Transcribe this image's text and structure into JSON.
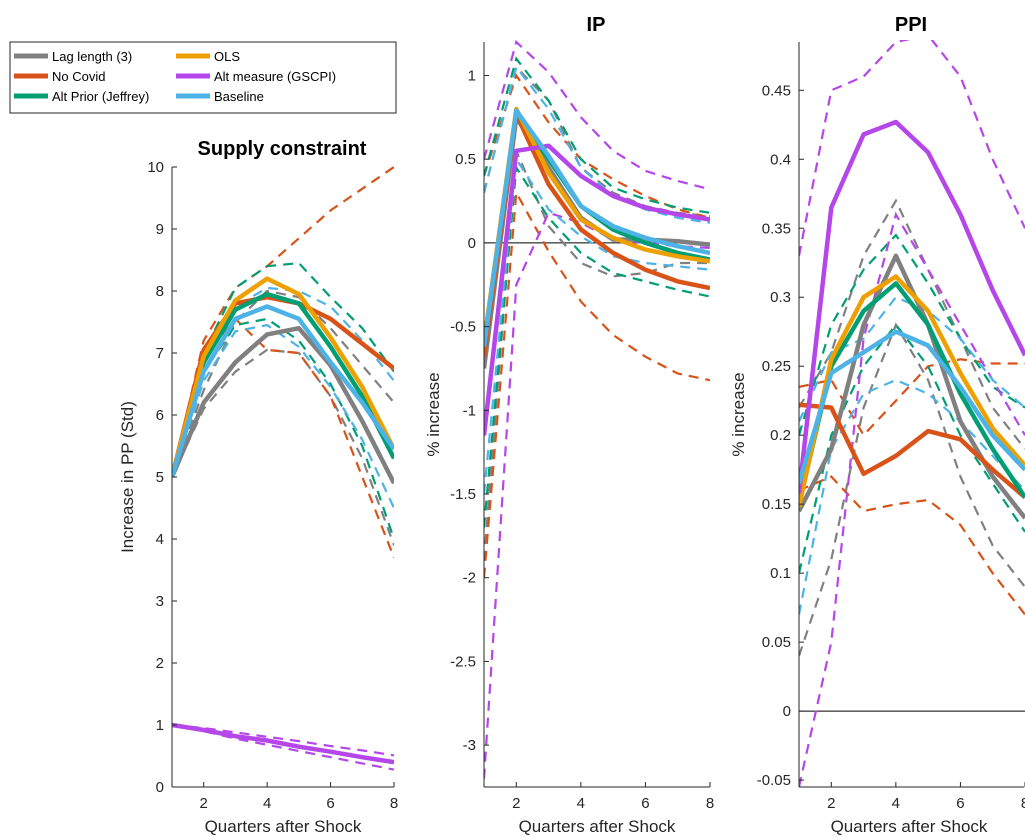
{
  "colors": {
    "gray": "#808080",
    "orange": "#D95319",
    "green": "#009E73",
    "gold": "#EDA000",
    "purple": "#B446EA",
    "blue": "#4DB3E6"
  },
  "legend": {
    "location": "top-left",
    "entries": [
      {
        "label": "Lag length (3)",
        "color": "#808080"
      },
      {
        "label": "No Covid",
        "color": "#D95319"
      },
      {
        "label": "Alt Prior (Jeffrey)",
        "color": "#009E73"
      },
      {
        "label": "OLS",
        "color": "#EDA000"
      },
      {
        "label": "Alt measure (GSCPI)",
        "color": "#B446EA"
      },
      {
        "label": "Baseline",
        "color": "#4DB3E6"
      }
    ]
  },
  "chart_data": [
    {
      "type": "line",
      "title": "Supply constraint",
      "xlabel": "Quarters after Shock",
      "ylabel": "Increase in PP (Std)",
      "xlim": [
        1,
        8
      ],
      "ylim": [
        0,
        10
      ],
      "xticks": [
        "2",
        "4",
        "6",
        "8"
      ],
      "yticks": [
        "0",
        "1",
        "2",
        "3",
        "4",
        "5",
        "6",
        "7",
        "8",
        "9",
        "10"
      ],
      "x": [
        1,
        2,
        3,
        4,
        5,
        6,
        7,
        8
      ],
      "grid": false,
      "series": [
        {
          "name": "Lag length (3)",
          "color": "#808080",
          "values": [
            5.0,
            6.2,
            6.85,
            7.3,
            7.4,
            6.8,
            5.9,
            4.9
          ],
          "lower": [
            5.0,
            6.1,
            6.7,
            7.05,
            7.0,
            6.3,
            5.3,
            3.9
          ],
          "upper": [
            5.0,
            6.4,
            7.5,
            8.0,
            7.9,
            7.4,
            6.8,
            6.2
          ]
        },
        {
          "name": "No Covid",
          "color": "#D95319",
          "values": [
            5.0,
            7.05,
            7.8,
            7.9,
            7.8,
            7.55,
            7.15,
            6.75
          ],
          "lower": [
            5.0,
            6.9,
            7.55,
            7.05,
            7.0,
            6.3,
            5.0,
            3.7
          ],
          "upper": [
            5.0,
            7.2,
            8.05,
            8.4,
            8.85,
            9.3,
            9.65,
            10.0
          ]
        },
        {
          "name": "Alt Prior (Jeffrey)",
          "color": "#009E73",
          "values": [
            5.0,
            6.85,
            7.7,
            7.95,
            7.8,
            7.1,
            6.3,
            5.3
          ],
          "lower": [
            5.0,
            6.7,
            7.45,
            7.55,
            7.2,
            6.5,
            5.5,
            4.0
          ],
          "upper": [
            5.0,
            7.0,
            8.05,
            8.4,
            8.45,
            7.9,
            7.4,
            6.7
          ]
        },
        {
          "name": "OLS",
          "color": "#EDA000",
          "values": [
            5.0,
            6.95,
            7.85,
            8.2,
            7.95,
            7.25,
            6.45,
            5.45
          ]
        },
        {
          "name": "Alt measure (GSCPI)",
          "color": "#B446EA",
          "values": [
            1.0,
            0.92,
            0.82,
            0.75,
            0.65,
            0.57,
            0.48,
            0.4
          ],
          "lower": [
            1.0,
            0.9,
            0.78,
            0.68,
            0.58,
            0.48,
            0.38,
            0.28
          ],
          "upper": [
            1.0,
            0.95,
            0.88,
            0.81,
            0.74,
            0.66,
            0.59,
            0.51
          ]
        },
        {
          "name": "Baseline",
          "color": "#4DB3E6",
          "values": [
            5.0,
            6.7,
            7.55,
            7.75,
            7.55,
            6.85,
            6.2,
            5.45
          ],
          "lower": [
            5.0,
            6.55,
            7.35,
            7.45,
            7.1,
            6.45,
            5.6,
            4.5
          ],
          "upper": [
            5.0,
            6.85,
            7.75,
            8.05,
            8.0,
            7.75,
            7.2,
            6.55
          ]
        }
      ]
    },
    {
      "type": "line",
      "title": "IP",
      "xlabel": "Quarters after Shock",
      "ylabel": "% increase",
      "xlim": [
        1,
        8
      ],
      "ylim": [
        -3.25,
        1.2
      ],
      "xticks": [
        "2",
        "4",
        "6",
        "8"
      ],
      "yticks": [
        "-3",
        "-2.5",
        "-2",
        "-1.5",
        "-1",
        "-0.5",
        "0",
        "0.5",
        "1"
      ],
      "zero_line": true,
      "x": [
        1,
        2,
        3,
        4,
        5,
        6,
        7,
        8
      ],
      "grid": false,
      "series": [
        {
          "name": "Lag length (3)",
          "color": "#808080",
          "values": [
            -0.75,
            0.75,
            0.45,
            0.15,
            0.02,
            0.02,
            0.01,
            -0.01
          ],
          "lower": [
            -1.9,
            0.55,
            0.1,
            -0.12,
            -0.2,
            -0.18,
            -0.12,
            -0.12
          ],
          "upper": [
            0.3,
            1.05,
            0.85,
            0.45,
            0.3,
            0.22,
            0.18,
            0.16
          ]
        },
        {
          "name": "No Covid",
          "color": "#D95319",
          "values": [
            -0.68,
            0.77,
            0.35,
            0.08,
            -0.06,
            -0.16,
            -0.23,
            -0.27
          ],
          "lower": [
            -2.0,
            0.3,
            -0.05,
            -0.35,
            -0.55,
            -0.68,
            -0.78,
            -0.82
          ],
          "upper": [
            0.4,
            1.0,
            0.72,
            0.5,
            0.38,
            0.28,
            0.2,
            0.15
          ]
        },
        {
          "name": "Alt Prior (Jeffrey)",
          "color": "#009E73",
          "values": [
            -0.6,
            0.78,
            0.5,
            0.22,
            0.08,
            0.0,
            -0.06,
            -0.1
          ],
          "lower": [
            -1.7,
            0.45,
            0.15,
            -0.06,
            -0.18,
            -0.23,
            -0.28,
            -0.32
          ],
          "upper": [
            0.4,
            1.1,
            0.85,
            0.5,
            0.33,
            0.26,
            0.21,
            0.18
          ]
        },
        {
          "name": "OLS",
          "color": "#EDA000",
          "values": [
            -0.6,
            0.8,
            0.42,
            0.14,
            0.03,
            -0.04,
            -0.08,
            -0.11
          ]
        },
        {
          "name": "Alt measure (GSCPI)",
          "color": "#B446EA",
          "values": [
            -1.15,
            0.55,
            0.58,
            0.4,
            0.28,
            0.21,
            0.17,
            0.14
          ],
          "lower": [
            -3.2,
            -0.25,
            0.18,
            0.12,
            0.02,
            0.0,
            -0.02,
            -0.03
          ],
          "upper": [
            0.5,
            1.2,
            1.02,
            0.75,
            0.55,
            0.43,
            0.37,
            0.32
          ]
        },
        {
          "name": "Baseline",
          "color": "#4DB3E6",
          "values": [
            -0.62,
            0.79,
            0.52,
            0.22,
            0.1,
            0.03,
            -0.02,
            -0.06
          ],
          "lower": [
            -1.5,
            0.5,
            0.2,
            0.04,
            -0.08,
            -0.12,
            -0.14,
            -0.16
          ],
          "upper": [
            0.3,
            1.05,
            0.8,
            0.45,
            0.28,
            0.2,
            0.15,
            0.12
          ]
        }
      ]
    },
    {
      "type": "line",
      "title": "PPI",
      "xlabel": "Quarters after Shock",
      "ylabel": "% increase",
      "xlim": [
        1,
        8
      ],
      "ylim": [
        -0.055,
        0.485
      ],
      "xticks": [
        "2",
        "4",
        "6",
        "8"
      ],
      "yticks": [
        "-0.05",
        "0",
        "0.05",
        "0.1",
        "0.15",
        "0.2",
        "0.25",
        "0.3",
        "0.35",
        "0.4",
        "0.45"
      ],
      "zero_line": true,
      "x": [
        1,
        2,
        3,
        4,
        5,
        6,
        7,
        8
      ],
      "grid": false,
      "series": [
        {
          "name": "Lag length (3)",
          "color": "#808080",
          "values": [
            0.145,
            0.19,
            0.28,
            0.33,
            0.28,
            0.21,
            0.17,
            0.14
          ],
          "lower": [
            0.04,
            0.11,
            0.22,
            0.28,
            0.24,
            0.17,
            0.12,
            0.09
          ],
          "upper": [
            0.22,
            0.26,
            0.33,
            0.37,
            0.32,
            0.27,
            0.22,
            0.19
          ]
        },
        {
          "name": "No Covid",
          "color": "#D95319",
          "values": [
            0.222,
            0.22,
            0.172,
            0.185,
            0.203,
            0.197,
            0.175,
            0.155
          ],
          "lower": [
            0.16,
            0.17,
            0.145,
            0.15,
            0.153,
            0.135,
            0.1,
            0.07
          ],
          "upper": [
            0.235,
            0.24,
            0.2,
            0.225,
            0.25,
            0.255,
            0.252,
            0.252
          ]
        },
        {
          "name": "Alt Prior (Jeffrey)",
          "color": "#009E73",
          "values": [
            0.15,
            0.25,
            0.29,
            0.31,
            0.28,
            0.23,
            0.19,
            0.155
          ],
          "lower": [
            0.1,
            0.2,
            0.25,
            0.28,
            0.25,
            0.2,
            0.165,
            0.13
          ],
          "upper": [
            0.2,
            0.28,
            0.32,
            0.345,
            0.31,
            0.27,
            0.235,
            0.22
          ]
        },
        {
          "name": "OLS",
          "color": "#EDA000",
          "values": [
            0.148,
            0.255,
            0.3,
            0.315,
            0.29,
            0.245,
            0.205,
            0.178
          ]
        },
        {
          "name": "Alt measure (GSCPI)",
          "color": "#B446EA",
          "values": [
            0.158,
            0.365,
            0.418,
            0.427,
            0.405,
            0.36,
            0.305,
            0.258
          ],
          "lower": [
            -0.055,
            0.05,
            0.27,
            0.36,
            0.32,
            0.28,
            0.24,
            0.2
          ],
          "upper": [
            0.33,
            0.45,
            0.46,
            0.485,
            0.49,
            0.46,
            0.4,
            0.35
          ]
        },
        {
          "name": "Baseline",
          "color": "#4DB3E6",
          "values": [
            0.165,
            0.245,
            0.26,
            0.275,
            0.265,
            0.235,
            0.2,
            0.175
          ],
          "lower": [
            0.07,
            0.19,
            0.23,
            0.24,
            0.23,
            0.21,
            0.185,
            0.16
          ],
          "upper": [
            0.21,
            0.26,
            0.27,
            0.3,
            0.29,
            0.27,
            0.24,
            0.22
          ]
        }
      ]
    }
  ]
}
